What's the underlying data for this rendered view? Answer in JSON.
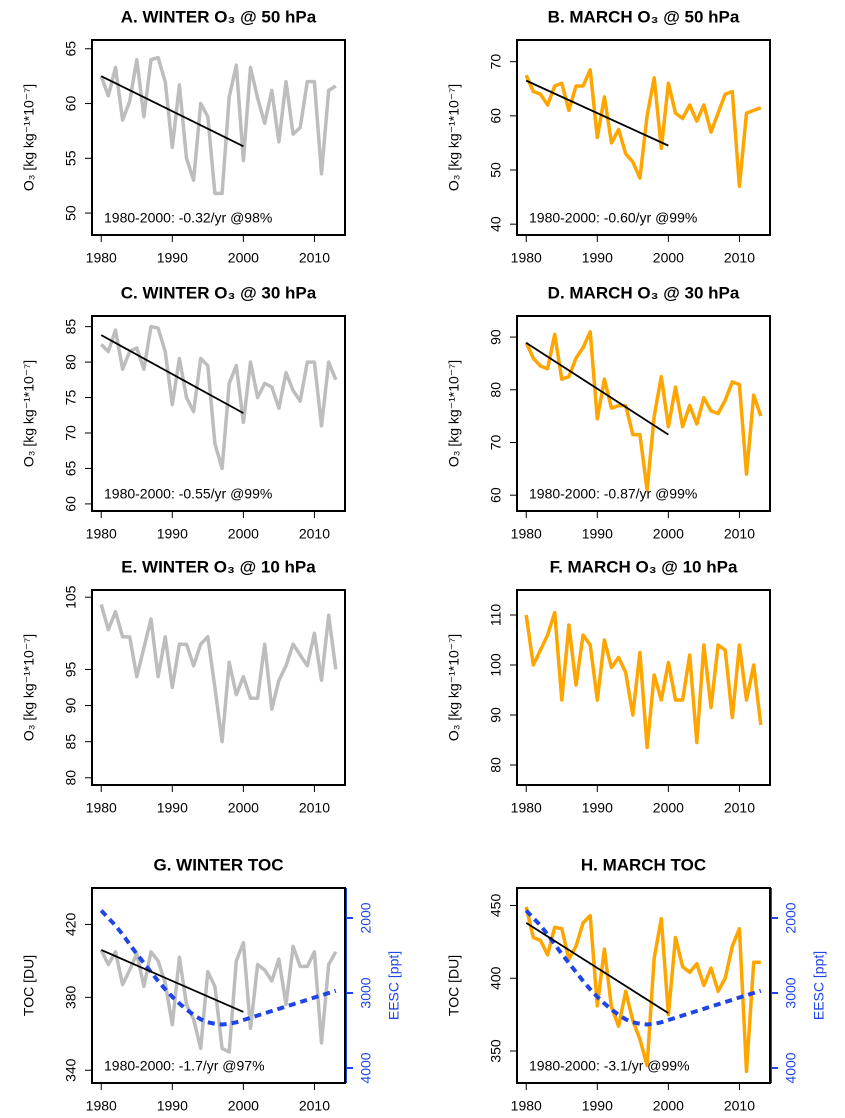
{
  "chart_data": [
    {
      "type": "line",
      "title": "A. WINTER O₃ @ 50 hPa",
      "y_label": "O₃ [kg kg⁻¹*10⁻⁷]",
      "x": [
        1980,
        1981,
        1982,
        1983,
        1984,
        1985,
        1986,
        1987,
        1988,
        1989,
        1990,
        1991,
        1992,
        1993,
        1994,
        1995,
        1996,
        1997,
        1998,
        1999,
        2000,
        2001,
        2002,
        2003,
        2004,
        2005,
        2006,
        2007,
        2008,
        2009,
        2010,
        2011,
        2012,
        2013
      ],
      "series": [
        {
          "color": "#bdbdbd",
          "values": [
            62.5,
            60.7,
            63.3,
            58.5,
            60.2,
            64.0,
            58.8,
            64.0,
            64.2,
            62.0,
            56.0,
            61.7,
            55.0,
            53.0,
            60.0,
            58.8,
            51.8,
            51.8,
            60.6,
            63.5,
            54.8,
            63.3,
            60.5,
            58.2,
            61.2,
            56.5,
            62.0,
            57.2,
            57.8,
            62.0,
            62.0,
            53.6,
            61.2,
            61.6
          ]
        }
      ],
      "trend": {
        "color": "#000000",
        "x": [
          1980,
          2000
        ],
        "values": [
          62.5,
          56.1
        ]
      },
      "annotation": "1980-2000: -0.32/yr @98%",
      "xlim": [
        1978.7,
        2014.3
      ],
      "xticks": [
        1980,
        1990,
        2000,
        2010
      ],
      "ylim": [
        48,
        65.8
      ],
      "yticks": [
        50,
        55,
        60,
        65
      ]
    },
    {
      "type": "line",
      "title": "B. MARCH O₃ @ 50 hPa",
      "y_label": "O₃ [kg kg⁻¹*10⁻⁷]",
      "x": [
        1980,
        1981,
        1982,
        1983,
        1984,
        1985,
        1986,
        1987,
        1988,
        1989,
        1990,
        1991,
        1992,
        1993,
        1994,
        1995,
        1996,
        1997,
        1998,
        1999,
        2000,
        2001,
        2002,
        2003,
        2004,
        2005,
        2006,
        2007,
        2008,
        2009,
        2010,
        2011,
        2012,
        2013
      ],
      "series": [
        {
          "color": "#ffa500",
          "values": [
            67.5,
            64.5,
            64.0,
            62.0,
            65.5,
            66.0,
            61.0,
            65.5,
            65.5,
            68.5,
            56.0,
            63.5,
            55.0,
            57.5,
            53.0,
            51.5,
            48.5,
            60.0,
            67.0,
            54.0,
            66.0,
            60.5,
            59.5,
            62.0,
            59.0,
            62.0,
            57.0,
            60.5,
            64.0,
            64.5,
            47.0,
            60.5,
            61.0,
            61.5
          ]
        }
      ],
      "trend": {
        "color": "#000000",
        "x": [
          1980,
          2000
        ],
        "values": [
          66.5,
          54.5
        ]
      },
      "annotation": "1980-2000: -0.60/yr @99%",
      "xlim": [
        1978.7,
        2014.3
      ],
      "xticks": [
        1980,
        1990,
        2000,
        2010
      ],
      "ylim": [
        38,
        74
      ],
      "yticks": [
        40,
        50,
        60,
        70
      ]
    },
    {
      "type": "line",
      "title": "C. WINTER O₃ @ 30 hPa",
      "y_label": "O₃ [kg kg⁻¹*10⁻⁷]",
      "x": [
        1980,
        1981,
        1982,
        1983,
        1984,
        1985,
        1986,
        1987,
        1988,
        1989,
        1990,
        1991,
        1992,
        1993,
        1994,
        1995,
        1996,
        1997,
        1998,
        1999,
        2000,
        2001,
        2002,
        2003,
        2004,
        2005,
        2006,
        2007,
        2008,
        2009,
        2010,
        2011,
        2012,
        2013
      ],
      "series": [
        {
          "color": "#bdbdbd",
          "values": [
            82.5,
            81.5,
            84.5,
            79.0,
            81.5,
            82.0,
            79.0,
            85.0,
            84.8,
            81.5,
            74.0,
            80.5,
            75.0,
            73.0,
            80.5,
            79.5,
            68.5,
            65.0,
            77.0,
            79.5,
            71.5,
            80.0,
            75.0,
            77.0,
            76.5,
            73.5,
            78.5,
            76.0,
            74.5,
            80.0,
            80.0,
            71.0,
            80.0,
            77.5
          ]
        }
      ],
      "trend": {
        "color": "#000000",
        "x": [
          1980,
          2000
        ],
        "values": [
          83.8,
          72.8
        ]
      },
      "annotation": "1980-2000: -0.55/yr @99%",
      "xlim": [
        1978.7,
        2014.3
      ],
      "xticks": [
        1980,
        1990,
        2000,
        2010
      ],
      "ylim": [
        59,
        86.5
      ],
      "yticks": [
        60,
        65,
        70,
        75,
        80,
        85
      ]
    },
    {
      "type": "line",
      "title": "D. MARCH O₃ @ 30 hPa",
      "y_label": "O₃ [kg kg⁻¹*10⁻⁷]",
      "x": [
        1980,
        1981,
        1982,
        1983,
        1984,
        1985,
        1986,
        1987,
        1988,
        1989,
        1990,
        1991,
        1992,
        1993,
        1994,
        1995,
        1996,
        1997,
        1998,
        1999,
        2000,
        2001,
        2002,
        2003,
        2004,
        2005,
        2006,
        2007,
        2008,
        2009,
        2010,
        2011,
        2012,
        2013
      ],
      "series": [
        {
          "color": "#ffa500",
          "values": [
            89.0,
            86.0,
            84.5,
            84.0,
            90.5,
            82.0,
            82.5,
            86.0,
            88.0,
            91.0,
            74.5,
            82.0,
            76.5,
            77.0,
            77.0,
            71.5,
            71.5,
            61.0,
            75.0,
            82.5,
            73.0,
            80.5,
            73.0,
            77.0,
            73.5,
            78.5,
            76.0,
            75.5,
            78.0,
            81.5,
            81.0,
            64.0,
            79.0,
            75.0
          ]
        }
      ],
      "trend": {
        "color": "#000000",
        "x": [
          1980,
          2000
        ],
        "values": [
          88.9,
          71.5
        ]
      },
      "annotation": "1980-2000: -0.87/yr @99%",
      "xlim": [
        1978.7,
        2014.3
      ],
      "xticks": [
        1980,
        1990,
        2000,
        2010
      ],
      "ylim": [
        57,
        94
      ],
      "yticks": [
        60,
        70,
        80,
        90
      ]
    },
    {
      "type": "line",
      "title": "E. WINTER O₃ @ 10 hPa",
      "y_label": "O₃ [kg kg⁻¹*10⁻⁷]",
      "x": [
        1980,
        1981,
        1982,
        1983,
        1984,
        1985,
        1986,
        1987,
        1988,
        1989,
        1990,
        1991,
        1992,
        1993,
        1994,
        1995,
        1996,
        1997,
        1998,
        1999,
        2000,
        2001,
        2002,
        2003,
        2004,
        2005,
        2006,
        2007,
        2008,
        2009,
        2010,
        2011,
        2012,
        2013
      ],
      "series": [
        {
          "color": "#bdbdbd",
          "values": [
            104.0,
            100.5,
            103.0,
            99.5,
            99.5,
            94.0,
            98.0,
            102.0,
            94.0,
            99.5,
            92.5,
            98.5,
            98.5,
            95.5,
            98.5,
            99.5,
            92.5,
            85.0,
            96.0,
            91.5,
            94.0,
            91.0,
            91.0,
            98.5,
            89.5,
            93.5,
            95.5,
            98.5,
            97.0,
            95.5,
            100.0,
            93.5,
            102.5,
            95.0
          ]
        }
      ],
      "xlim": [
        1978.7,
        2014.3
      ],
      "xticks": [
        1980,
        1990,
        2000,
        2010
      ],
      "ylim": [
        79,
        106
      ],
      "yticks": [
        80,
        85,
        90,
        95,
        105
      ]
    },
    {
      "type": "line",
      "title": "F. MARCH O₃ @ 10 hPa",
      "y_label": "O₃ [kg kg⁻¹*10⁻⁷]",
      "x": [
        1980,
        1981,
        1982,
        1983,
        1984,
        1985,
        1986,
        1987,
        1988,
        1989,
        1990,
        1991,
        1992,
        1993,
        1994,
        1995,
        1996,
        1997,
        1998,
        1999,
        2000,
        2001,
        2002,
        2003,
        2004,
        2005,
        2006,
        2007,
        2008,
        2009,
        2010,
        2011,
        2012,
        2013
      ],
      "series": [
        {
          "color": "#ffa500",
          "values": [
            110.0,
            100.0,
            103.0,
            106.0,
            110.5,
            93.0,
            108.0,
            96.0,
            106.0,
            104.0,
            93.0,
            105.0,
            99.5,
            101.5,
            98.5,
            90.0,
            102.5,
            83.5,
            98.0,
            93.0,
            100.5,
            93.0,
            93.0,
            102.0,
            84.5,
            104.0,
            91.5,
            104.0,
            103.0,
            89.5,
            104.0,
            93.0,
            100.0,
            88.0
          ]
        }
      ],
      "xlim": [
        1978.7,
        2014.3
      ],
      "xticks": [
        1980,
        1990,
        2000,
        2010
      ],
      "ylim": [
        76,
        115
      ],
      "yticks": [
        80,
        90,
        100,
        110
      ]
    },
    {
      "type": "line",
      "title": "G.  WINTER TOC",
      "y_label": "TOC [DU]",
      "y2_label": "EESC [ppt]",
      "x": [
        1980,
        1981,
        1982,
        1983,
        1984,
        1985,
        1986,
        1987,
        1988,
        1989,
        1990,
        1991,
        1992,
        1993,
        1994,
        1995,
        1996,
        1997,
        1998,
        1999,
        2000,
        2001,
        2002,
        2003,
        2004,
        2005,
        2006,
        2007,
        2008,
        2009,
        2010,
        2011,
        2012,
        2013
      ],
      "series": [
        {
          "color": "#bdbdbd",
          "values": [
            406,
            398,
            405,
            387,
            395,
            404,
            386,
            405,
            400,
            388,
            365,
            402,
            376,
            368,
            352,
            394,
            386,
            352,
            350,
            400,
            410,
            363,
            398,
            395,
            389,
            401,
            376,
            408,
            397,
            397,
            405,
            355,
            398,
            405
          ]
        },
        {
          "color": "#1f45e6",
          "axis": "y2",
          "dashed": true,
          "values": [
            1900,
            2000,
            2100,
            2220,
            2350,
            2480,
            2600,
            2720,
            2840,
            2950,
            3050,
            3140,
            3220,
            3290,
            3350,
            3390,
            3410,
            3420,
            3410,
            3390,
            3360,
            3330,
            3300,
            3270,
            3240,
            3210,
            3180,
            3150,
            3120,
            3090,
            3060,
            3030,
            3000,
            2970
          ]
        }
      ],
      "trend": {
        "color": "#000000",
        "x": [
          1980,
          2000
        ],
        "values": [
          406,
          372
        ]
      },
      "annotation": "1980-2000: -1.7/yr @97%",
      "xlim": [
        1978.7,
        2014.3
      ],
      "xticks": [
        1980,
        1990,
        2000,
        2010
      ],
      "ylim": [
        333,
        440
      ],
      "yticks": [
        340,
        380,
        420
      ],
      "y2lim": [
        4200,
        1600
      ],
      "y2ticks": [
        2000,
        3000,
        4000
      ]
    },
    {
      "type": "line",
      "title": "H. MARCH TOC",
      "y_label": "TOC [DU]",
      "y2_label": "EESC [ppt]",
      "x": [
        1980,
        1981,
        1982,
        1983,
        1984,
        1985,
        1986,
        1987,
        1988,
        1989,
        1990,
        1991,
        1992,
        1993,
        1994,
        1995,
        1996,
        1997,
        1998,
        1999,
        2000,
        2001,
        2002,
        2003,
        2004,
        2005,
        2006,
        2007,
        2008,
        2009,
        2010,
        2011,
        2012,
        2013
      ],
      "series": [
        {
          "color": "#ffa500",
          "values": [
            449,
            428,
            426,
            416,
            435,
            434,
            413,
            422,
            438,
            443,
            381,
            420,
            380,
            367,
            391,
            371,
            358,
            340,
            414,
            441,
            375,
            428,
            408,
            404,
            410,
            395,
            407,
            391,
            400,
            422,
            434,
            336,
            411,
            411
          ]
        },
        {
          "color": "#1f45e6",
          "axis": "y2",
          "dashed": true,
          "values": [
            1900,
            2000,
            2100,
            2220,
            2350,
            2480,
            2600,
            2720,
            2840,
            2950,
            3050,
            3140,
            3220,
            3290,
            3350,
            3390,
            3410,
            3420,
            3410,
            3390,
            3360,
            3330,
            3300,
            3270,
            3240,
            3210,
            3180,
            3150,
            3120,
            3090,
            3060,
            3030,
            3000,
            2970
          ]
        }
      ],
      "trend": {
        "color": "#000000",
        "x": [
          1980,
          2000
        ],
        "values": [
          438,
          376
        ]
      },
      "annotation": "1980-2000: -3.1/yr @99%",
      "xlim": [
        1978.7,
        2014.3
      ],
      "xticks": [
        1980,
        1990,
        2000,
        2010
      ],
      "ylim": [
        328,
        462
      ],
      "yticks": [
        350,
        400,
        450
      ],
      "y2lim": [
        4200,
        1600
      ],
      "y2ticks": [
        2000,
        3000,
        4000
      ]
    }
  ]
}
